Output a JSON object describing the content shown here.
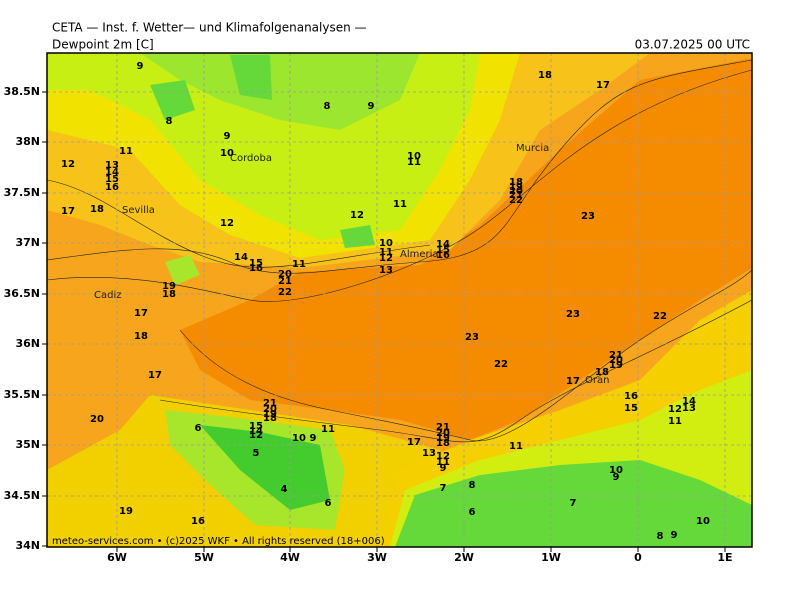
{
  "header": {
    "title": "CETA — Inst. f. Wetter— und Klimafolgenanalysen —",
    "field": "Dewpoint 2m [C]",
    "valid_time": "03.07.2025 00 UTC"
  },
  "footer": "meteo-services.com • (c)2025 WKF • All rights reserved (18+006)",
  "map": {
    "lat_ticks": [
      "38.5N",
      "38N",
      "37.5N",
      "37N",
      "36.5N",
      "36N",
      "35.5N",
      "35N",
      "34.5N",
      "34N"
    ],
    "lon_ticks": [
      "6W",
      "5W",
      "4W",
      "3W",
      "2W",
      "1W",
      "0",
      "1E"
    ],
    "cities": [
      "Cordoba",
      "Sevilla",
      "Murcia",
      "Almeria",
      "Cadiz",
      "Oran"
    ],
    "contour_labels": [
      "9",
      "8",
      "8",
      "9",
      "9",
      "10",
      "11",
      "12",
      "13",
      "14",
      "15",
      "16",
      "17",
      "18",
      "12",
      "14",
      "15",
      "16",
      "11",
      "20",
      "21",
      "22",
      "19",
      "18",
      "17",
      "18",
      "17",
      "20",
      "19",
      "16",
      "12",
      "11",
      "10",
      "11",
      "10",
      "11",
      "12",
      "13",
      "14",
      "15",
      "16",
      "18",
      "19",
      "20",
      "21",
      "22",
      "18",
      "17",
      "23",
      "23",
      "22",
      "23",
      "22",
      "21",
      "20",
      "19",
      "18",
      "17",
      "16",
      "15",
      "14",
      "13",
      "12",
      "11",
      "21",
      "20",
      "19",
      "18",
      "15",
      "14",
      "12",
      "11",
      "10",
      "9",
      "6",
      "5",
      "4",
      "6",
      "21",
      "20",
      "19",
      "18",
      "17",
      "13",
      "12",
      "11",
      "9",
      "11",
      "7",
      "8",
      "6",
      "7",
      "10",
      "9",
      "10",
      "8",
      "9"
    ]
  }
}
